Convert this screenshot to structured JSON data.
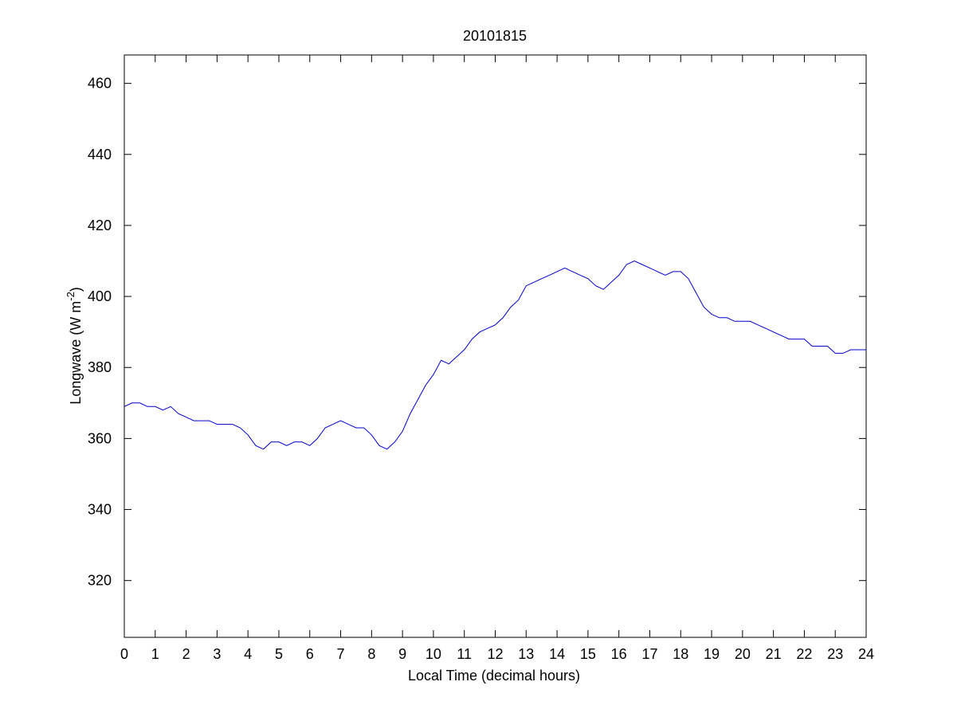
{
  "chart_data": {
    "type": "line",
    "title": "20101815",
    "xlabel": "Local Time (decimal hours)",
    "ylabel": "Longwave (W m-2)",
    "ylabel_main": "Longwave (W m",
    "ylabel_sup": "-2",
    "ylabel_close": ")",
    "xlim": [
      0,
      24
    ],
    "ylim": [
      304,
      468
    ],
    "xticks": [
      0,
      1,
      2,
      3,
      4,
      5,
      6,
      7,
      8,
      9,
      10,
      11,
      12,
      13,
      14,
      15,
      16,
      17,
      18,
      19,
      20,
      21,
      22,
      23,
      24
    ],
    "xtick_labels": [
      "0",
      "1",
      "2",
      "3",
      "4",
      "5",
      "6",
      "7",
      "8",
      "9",
      "10",
      "11",
      "12",
      "13",
      "14",
      "15",
      "16",
      "17",
      "18",
      "19",
      "20",
      "21",
      "22",
      "23",
      "24"
    ],
    "yticks": [
      320,
      340,
      360,
      380,
      400,
      420,
      440,
      460
    ],
    "ytick_labels": [
      "320",
      "340",
      "360",
      "380",
      "400",
      "420",
      "440",
      "460"
    ],
    "grid": false,
    "line_color": "#0000cc",
    "series": [
      {
        "x": [
          0.0,
          0.25,
          0.5,
          0.75,
          1.0,
          1.25,
          1.5,
          1.75,
          2.0,
          2.25,
          2.5,
          2.75,
          3.0,
          3.25,
          3.5,
          3.75,
          4.0,
          4.25,
          4.5,
          4.75,
          5.0,
          5.25,
          5.5,
          5.75,
          6.0,
          6.25,
          6.5,
          6.75,
          7.0,
          7.25,
          7.5,
          7.75,
          8.0,
          8.25,
          8.5,
          8.75,
          9.0,
          9.25,
          9.5,
          9.75,
          10.0,
          10.25,
          10.5,
          10.75,
          11.0,
          11.25,
          11.5,
          11.75,
          12.0,
          12.25,
          12.5,
          12.75,
          13.0,
          13.25,
          13.5,
          13.75,
          14.0,
          14.25,
          14.5,
          14.75,
          15.0,
          15.25,
          15.5,
          15.75,
          16.0,
          16.25,
          16.5,
          16.75,
          17.0,
          17.25,
          17.5,
          17.75,
          18.0,
          18.25,
          18.5,
          18.75,
          19.0,
          19.25,
          19.5,
          19.75,
          20.0,
          20.25,
          20.5,
          20.75,
          21.0,
          21.25,
          21.5,
          21.75,
          22.0,
          22.25,
          22.5,
          22.75,
          23.0,
          23.25,
          23.5,
          23.75,
          24.0
        ],
        "y": [
          369,
          370,
          370,
          369,
          369,
          368,
          369,
          367,
          366,
          365,
          365,
          365,
          364,
          364,
          364,
          363,
          361,
          358,
          357,
          359,
          359,
          358,
          359,
          359,
          358,
          360,
          363,
          364,
          365,
          364,
          363,
          363,
          361,
          358,
          357,
          359,
          362,
          367,
          371,
          375,
          378,
          382,
          381,
          383,
          385,
          388,
          390,
          391,
          392,
          394,
          397,
          399,
          403,
          404,
          405,
          406,
          407,
          408,
          407,
          406,
          405,
          403,
          402,
          404,
          406,
          409,
          410,
          409,
          408,
          407,
          406,
          407,
          407,
          405,
          401,
          397,
          395,
          394,
          394,
          393,
          393,
          393,
          392,
          391,
          390,
          389,
          388,
          388,
          388,
          386,
          386,
          386,
          384,
          384,
          385,
          385,
          385
        ],
        "name": ""
      }
    ]
  }
}
